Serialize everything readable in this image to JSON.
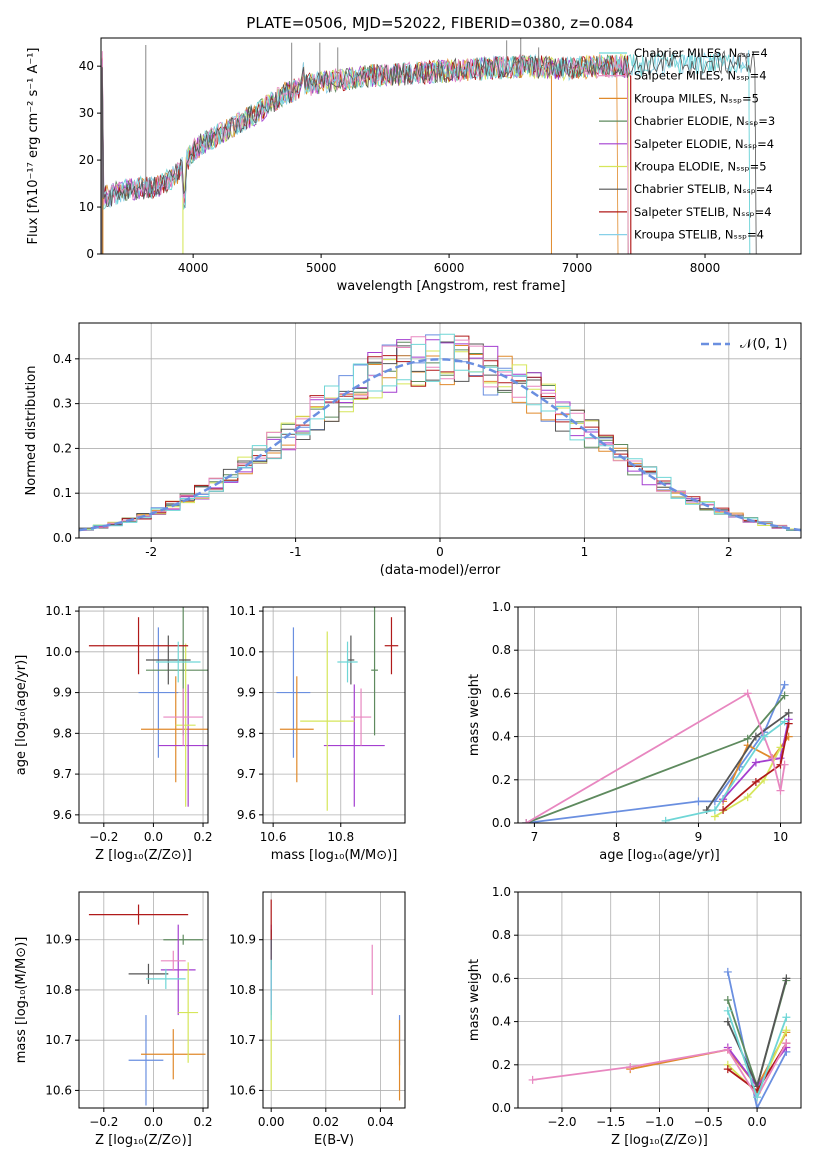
{
  "colors": [
    "#6a8fe0",
    "#e08a2c",
    "#5e8a5e",
    "#a43fd0",
    "#d6e65a",
    "#555555",
    "#b01a1a",
    "#e887c0",
    "#6fd6d6"
  ],
  "chart_data": [
    {
      "type": "line",
      "title": "PLATE=0506, MJD=52022, FIBERID=0380, z=0.084",
      "xlabel": "wavelength [Angstrom, rest frame]",
      "ylabel": "Flux [fλ10⁻¹⁷ erg cm⁻² s⁻¹ A⁻¹]",
      "xlim": [
        3280,
        8750
      ],
      "ylim": [
        0,
        46
      ],
      "xticks": [
        4000,
        5000,
        6000,
        7000,
        8000
      ],
      "yticks": [
        0,
        10,
        20,
        30,
        40
      ],
      "legend_position": "upper right",
      "series": [
        {
          "name": "Chabrier MILES, Nₛₛₚ=4",
          "color": "#6fd6d6"
        },
        {
          "name": "Salpeter MILES, Nₛₛₚ=4",
          "color": "#e887c0"
        },
        {
          "name": "Kroupa MILES, Nₛₛₚ=5",
          "color": "#e08a2c"
        },
        {
          "name": "Chabrier ELODIE, Nₛₛₚ=3",
          "color": "#5e8a5e"
        },
        {
          "name": "Salpeter ELODIE, Nₛₛₚ=4",
          "color": "#a43fd0"
        },
        {
          "name": "Kroupa ELODIE, Nₛₛₚ=5",
          "color": "#d6e65a"
        },
        {
          "name": "Chabrier STELIB, Nₛₛₚ=4",
          "color": "#555555"
        },
        {
          "name": "Salpeter STELIB, Nₛₛₚ=4",
          "color": "#b01a1a"
        },
        {
          "name": "Kroupa STELIB, Nₛₛₚ=4",
          "color": "#87d0e8"
        }
      ],
      "continuum": [
        [
          3300,
          12
        ],
        [
          3500,
          14
        ],
        [
          3700,
          14
        ],
        [
          3880,
          17
        ],
        [
          3950,
          20
        ],
        [
          4000,
          22
        ],
        [
          4100,
          24
        ],
        [
          4300,
          27
        ],
        [
          4500,
          30
        ],
        [
          4700,
          34
        ],
        [
          4900,
          36
        ],
        [
          5100,
          37
        ],
        [
          5400,
          38
        ],
        [
          5700,
          38.5
        ],
        [
          6000,
          39
        ],
        [
          6300,
          39.5
        ],
        [
          6600,
          40
        ],
        [
          6900,
          39.5
        ],
        [
          7200,
          40
        ],
        [
          7400,
          40
        ],
        [
          7600,
          40.5
        ],
        [
          8000,
          40.5
        ],
        [
          8400,
          41
        ]
      ],
      "spikes": [
        [
          3630,
          44.5
        ],
        [
          4770,
          45
        ],
        [
          4990,
          45
        ],
        [
          5130,
          44
        ],
        [
          6450,
          45.5
        ],
        [
          6560,
          46
        ],
        [
          6700,
          44
        ]
      ]
    },
    {
      "type": "histogram",
      "xlabel": "(data-model)/error",
      "ylabel": "Normed distribution",
      "xlim": [
        -2.5,
        2.5
      ],
      "ylim": [
        0,
        0.48
      ],
      "xticks": [
        -2,
        -1,
        0,
        1,
        2
      ],
      "yticks": [
        0.0,
        0.1,
        0.2,
        0.3,
        0.4
      ],
      "bin_width": 0.1,
      "reference_curve": {
        "name": "𝒩(0, 1)",
        "color": "#6a8fe0"
      },
      "legend_position": "upper right"
    },
    {
      "type": "scatter",
      "xlabel": "Z [log₁₀(Z/Z⊙)]",
      "ylabel": "age  [log₁₀(age/yr)]",
      "xlim": [
        -0.3,
        0.22
      ],
      "ylim": [
        9.58,
        10.11
      ],
      "xticks": [
        -0.2,
        0.0,
        0.2
      ],
      "xticklabels": [
        "−0.2",
        "0.0",
        "0.2"
      ],
      "yticks": [
        9.6,
        9.7,
        9.8,
        9.9,
        10.0,
        10.1
      ],
      "points": [
        {
          "c": 0,
          "x": 0.02,
          "xe": 0.08,
          "y": 9.9,
          "ye": 0.16
        },
        {
          "c": 1,
          "x": 0.09,
          "xe": 0.14,
          "y": 9.81,
          "ye": 0.13
        },
        {
          "c": 2,
          "x": 0.12,
          "xe": 0.15,
          "y": 9.955,
          "ye": 0.16
        },
        {
          "c": 3,
          "x": 0.14,
          "xe": 0.12,
          "y": 9.77,
          "ye": 0.15
        },
        {
          "c": 4,
          "x": 0.13,
          "xe": 0.04,
          "y": 9.82,
          "ye": 0.2
        },
        {
          "c": 5,
          "x": 0.06,
          "xe": 0.09,
          "y": 9.98,
          "ye": 0.06
        },
        {
          "c": 6,
          "x": -0.06,
          "xe": 0.2,
          "y": 10.015,
          "ye": 0.07
        },
        {
          "c": 7,
          "x": 0.12,
          "xe": 0.08,
          "y": 9.84,
          "ye": 0.07
        },
        {
          "c": 8,
          "x": 0.1,
          "xe": 0.09,
          "y": 9.975,
          "ye": 0.05
        }
      ]
    },
    {
      "type": "scatter",
      "xlabel": "mass [log₁₀(M/M⊙)]",
      "ylabel": "",
      "xlim": [
        10.57,
        10.99
      ],
      "ylim": [
        9.58,
        10.11
      ],
      "xticks": [
        10.6,
        10.8
      ],
      "xticklabels": [
        "10.6",
        "10.8"
      ],
      "yticks": [
        9.6,
        9.7,
        9.8,
        9.9,
        10.0,
        10.1
      ],
      "points": [
        {
          "c": 0,
          "x": 10.66,
          "xe": 0.05,
          "y": 9.9,
          "ye": 0.16
        },
        {
          "c": 1,
          "x": 10.67,
          "xe": 0.05,
          "y": 9.81,
          "ye": 0.13
        },
        {
          "c": 2,
          "x": 10.9,
          "xe": 0.01,
          "y": 9.955,
          "ye": 0.16
        },
        {
          "c": 3,
          "x": 10.84,
          "xe": 0.09,
          "y": 9.77,
          "ye": 0.15
        },
        {
          "c": 4,
          "x": 10.76,
          "xe": 0.08,
          "y": 9.83,
          "ye": 0.22
        },
        {
          "c": 5,
          "x": 10.83,
          "xe": 0.01,
          "y": 9.98,
          "ye": 0.06
        },
        {
          "c": 6,
          "x": 10.95,
          "xe": 0.02,
          "y": 10.015,
          "ye": 0.07
        },
        {
          "c": 7,
          "x": 10.86,
          "xe": 0.03,
          "y": 9.84,
          "ye": 0.07
        },
        {
          "c": 8,
          "x": 10.82,
          "xe": 0.03,
          "y": 9.975,
          "ye": 0.05
        }
      ]
    },
    {
      "type": "line",
      "xlabel": "age  [log₁₀(age/yr)]",
      "ylabel": "mass weight",
      "xlim": [
        6.8,
        10.25
      ],
      "ylim": [
        0,
        1.0
      ],
      "xticks": [
        7,
        8,
        9,
        10
      ],
      "xticklabels": [
        "7",
        "8",
        "9",
        "10"
      ],
      "yticks": [
        0.0,
        0.2,
        0.4,
        0.6,
        0.8,
        1.0
      ],
      "series": [
        {
          "c": 0,
          "points": [
            [
              6.9,
              0.0
            ],
            [
              9.0,
              0.1
            ],
            [
              9.2,
              0.1
            ],
            [
              9.5,
              0.26
            ],
            [
              9.8,
              0.42
            ],
            [
              10.05,
              0.64
            ]
          ]
        },
        {
          "c": 1,
          "points": [
            [
              9.3,
              0.1
            ],
            [
              9.6,
              0.36
            ],
            [
              9.9,
              0.3
            ],
            [
              10.1,
              0.4
            ]
          ]
        },
        {
          "c": 2,
          "points": [
            [
              6.9,
              0.0
            ],
            [
              9.6,
              0.39
            ],
            [
              10.05,
              0.59
            ]
          ]
        },
        {
          "c": 3,
          "points": [
            [
              9.3,
              0.11
            ],
            [
              9.7,
              0.28
            ],
            [
              10.0,
              0.3
            ],
            [
              10.1,
              0.48
            ]
          ]
        },
        {
          "c": 4,
          "points": [
            [
              9.2,
              0.03
            ],
            [
              9.6,
              0.12
            ],
            [
              9.8,
              0.2
            ],
            [
              10.0,
              0.35
            ]
          ]
        },
        {
          "c": 5,
          "points": [
            [
              9.1,
              0.06
            ],
            [
              9.7,
              0.4
            ],
            [
              10.1,
              0.51
            ]
          ]
        },
        {
          "c": 6,
          "points": [
            [
              9.3,
              0.06
            ],
            [
              9.7,
              0.19
            ],
            [
              10.0,
              0.27
            ],
            [
              10.1,
              0.46
            ]
          ]
        },
        {
          "c": 7,
          "points": [
            [
              6.9,
              0.0
            ],
            [
              9.6,
              0.6
            ],
            [
              9.9,
              0.3
            ],
            [
              10.0,
              0.15
            ],
            [
              10.05,
              0.27
            ]
          ]
        },
        {
          "c": 8,
          "points": [
            [
              8.6,
              0.01
            ],
            [
              9.2,
              0.06
            ],
            [
              9.8,
              0.4
            ],
            [
              10.05,
              0.47
            ]
          ]
        }
      ]
    },
    {
      "type": "scatter",
      "xlabel": "Z [log₁₀(Z/Z⊙)]",
      "ylabel": "mass [log₁₀(M/M⊙)]",
      "xlim": [
        -0.3,
        0.22
      ],
      "ylim": [
        10.565,
        10.995
      ],
      "xticks": [
        -0.2,
        0.0,
        0.2
      ],
      "xticklabels": [
        "−0.2",
        "0.0",
        "0.2"
      ],
      "yticks": [
        10.6,
        10.7,
        10.8,
        10.9
      ],
      "points": [
        {
          "c": 0,
          "x": -0.03,
          "xe": 0.07,
          "y": 10.66,
          "ye": 0.09
        },
        {
          "c": 1,
          "x": 0.08,
          "xe": 0.13,
          "y": 10.672,
          "ye": 0.05
        },
        {
          "c": 2,
          "x": 0.12,
          "xe": 0.08,
          "y": 10.9,
          "ye": 0.01
        },
        {
          "c": 3,
          "x": 0.1,
          "xe": 0.07,
          "y": 10.84,
          "ye": 0.09
        },
        {
          "c": 4,
          "x": 0.14,
          "xe": 0.04,
          "y": 10.755,
          "ye": 0.1
        },
        {
          "c": 5,
          "x": -0.02,
          "xe": 0.08,
          "y": 10.832,
          "ye": 0.02
        },
        {
          "c": 6,
          "x": -0.06,
          "xe": 0.2,
          "y": 10.95,
          "ye": 0.02
        },
        {
          "c": 7,
          "x": 0.08,
          "xe": 0.05,
          "y": 10.858,
          "ye": 0.02
        },
        {
          "c": 8,
          "x": 0.05,
          "xe": 0.08,
          "y": 10.822,
          "ye": 0.02
        }
      ]
    },
    {
      "type": "scatter",
      "xlabel": "E(B-V)",
      "ylabel": "",
      "xlim": [
        -0.003,
        0.049
      ],
      "ylim": [
        10.565,
        10.995
      ],
      "xticks": [
        0.0,
        0.02,
        0.04
      ],
      "xticklabels": [
        "0.00",
        "0.02",
        "0.04"
      ],
      "yticks": [
        10.6,
        10.7,
        10.8,
        10.9
      ],
      "points": [
        {
          "c": 0,
          "x": 0.047,
          "xe": 0,
          "y": 10.7,
          "ye": 0.05
        },
        {
          "c": 1,
          "x": 0.047,
          "xe": 0,
          "y": 10.66,
          "ye": 0.08
        },
        {
          "c": 2,
          "x": 0.0,
          "xe": 0,
          "y": 10.9,
          "ye": 0.02
        },
        {
          "c": 3,
          "x": 0.0,
          "xe": 0,
          "y": 10.84,
          "ye": 0.09
        },
        {
          "c": 4,
          "x": 0.0,
          "xe": 0,
          "y": 10.68,
          "ye": 0.08
        },
        {
          "c": 5,
          "x": 0.0,
          "xe": 0,
          "y": 10.88,
          "ye": 0.04
        },
        {
          "c": 6,
          "x": 0.0,
          "xe": 0,
          "y": 10.94,
          "ye": 0.04
        },
        {
          "c": 7,
          "x": 0.037,
          "xe": 0,
          "y": 10.84,
          "ye": 0.05
        },
        {
          "c": 8,
          "x": 0.0,
          "xe": 0,
          "y": 10.8,
          "ye": 0.06
        }
      ]
    },
    {
      "type": "line",
      "xlabel": "Z [log₁₀(Z/Z⊙)]",
      "ylabel": "mass weight",
      "xlim": [
        -2.45,
        0.45
      ],
      "ylim": [
        0,
        1.0
      ],
      "xticks": [
        -2.0,
        -1.5,
        -1.0,
        -0.5,
        0.0
      ],
      "xticklabels": [
        "−2.0",
        "−1.5",
        "−1.0",
        "−0.5",
        "0.0"
      ],
      "yticks": [
        0.0,
        0.2,
        0.4,
        0.6,
        0.8,
        1.0
      ],
      "series": [
        {
          "c": 0,
          "points": [
            [
              -0.3,
              0.63
            ],
            [
              0.0,
              0.0
            ],
            [
              0.3,
              0.26
            ]
          ]
        },
        {
          "c": 1,
          "points": [
            [
              -1.3,
              0.18
            ],
            [
              -0.3,
              0.27
            ],
            [
              0.0,
              0.1
            ],
            [
              0.3,
              0.35
            ]
          ]
        },
        {
          "c": 2,
          "points": [
            [
              -0.3,
              0.5
            ],
            [
              0.0,
              0.1
            ],
            [
              0.3,
              0.59
            ]
          ]
        },
        {
          "c": 3,
          "points": [
            [
              -0.3,
              0.28
            ],
            [
              0.0,
              0.1
            ],
            [
              0.3,
              0.28
            ]
          ]
        },
        {
          "c": 4,
          "points": [
            [
              -0.3,
              0.2
            ],
            [
              0.0,
              0.07
            ],
            [
              0.3,
              0.36
            ]
          ]
        },
        {
          "c": 5,
          "points": [
            [
              -0.3,
              0.4
            ],
            [
              0.0,
              0.1
            ],
            [
              0.3,
              0.6
            ]
          ]
        },
        {
          "c": 6,
          "points": [
            [
              -0.3,
              0.18
            ],
            [
              0.0,
              0.08
            ],
            [
              0.3,
              0.3
            ]
          ]
        },
        {
          "c": 7,
          "points": [
            [
              -2.3,
              0.13
            ],
            [
              -1.3,
              0.19
            ],
            [
              -0.3,
              0.27
            ],
            [
              0.0,
              0.05
            ],
            [
              0.3,
              0.3
            ]
          ]
        },
        {
          "c": 8,
          "points": [
            [
              -0.3,
              0.45
            ],
            [
              0.0,
              0.05
            ],
            [
              0.3,
              0.42
            ]
          ]
        }
      ]
    }
  ]
}
